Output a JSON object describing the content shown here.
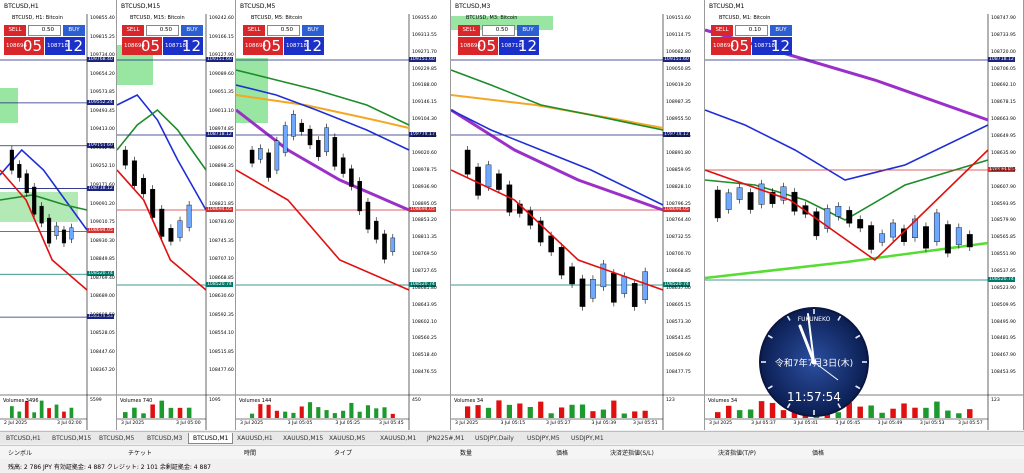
{
  "charts": [
    {
      "title": "BTCUSD,H1",
      "inner_title": "BTCUSD, H1:  Bitcoin",
      "sell_label": "SELL",
      "buy_label": "BUY",
      "lot": "0.50",
      "bid_small": "108694",
      "bid_big": "05",
      "ask_small": "108718",
      "ask_big": "12",
      "y_ticks": [
        "109855.40",
        "109815.25",
        "109734.00",
        "109654.20",
        "109573.85",
        "109493.45",
        "109413.00",
        "109332.55",
        "109252.10",
        "109171.60",
        "109091.20",
        "109010.75",
        "108930.30",
        "108849.85",
        "108769.40",
        "108689.00",
        "108608.50",
        "108528.05",
        "108447.60",
        "108367.20"
      ],
      "price_labels": [
        {
          "text": "109768.40",
          "color": "#1a237e"
        },
        {
          "text": "109552.24",
          "color": "#1a237e"
        },
        {
          "text": "109151.60",
          "color": "#1a237e"
        },
        {
          "text": "108718.12",
          "color": "#1a237e"
        },
        {
          "text": "108694.05",
          "color": "#d32f2f"
        },
        {
          "text": "108520.74",
          "color": "#00796b"
        },
        {
          "text": "108379.53",
          "color": "#1a237e"
        }
      ],
      "x_ticks": [
        "2 Jul 2025",
        "3 Jul 02:00"
      ],
      "volume_label": "Volumes 3496",
      "volume_axis": "5599"
    },
    {
      "title": "BTCUSD,M15",
      "inner_title": "BTCUSD, M15:  Bitcoin",
      "sell_label": "SELL",
      "buy_label": "BUY",
      "lot": "0.50",
      "bid_small": "108694",
      "bid_big": "05",
      "ask_small": "108718",
      "ask_big": "12",
      "y_ticks": [
        "109242.60",
        "109166.15",
        "109127.90",
        "109089.60",
        "109051.35",
        "109013.10",
        "108974.85",
        "108936.60",
        "108898.35",
        "108860.10",
        "108821.85",
        "108783.60",
        "108745.35",
        "108707.10",
        "108668.85",
        "108630.60",
        "108592.35",
        "108554.10",
        "108515.85",
        "108477.60"
      ],
      "price_labels": [
        {
          "text": "109151.60",
          "color": "#1a237e"
        },
        {
          "text": "108718.12",
          "color": "#1a237e"
        },
        {
          "text": "108694.05",
          "color": "#d32f2f"
        },
        {
          "text": "108520.74",
          "color": "#00796b"
        }
      ],
      "x_ticks": [
        "3 Jul 2025",
        "3 Jul 05:00"
      ],
      "volume_label": "Volumes 740",
      "volume_axis": "1095"
    },
    {
      "title": "BTCUSD,M5",
      "inner_title": "BTCUSD, M5:  Bitcoin",
      "sell_label": "SELL",
      "buy_label": "BUY",
      "lot": "0.50",
      "bid_small": "108694",
      "bid_big": "05",
      "ask_small": "108718",
      "ask_big": "12",
      "y_ticks": [
        "109355.40",
        "109313.55",
        "109271.70",
        "109229.85",
        "109188.00",
        "109146.15",
        "109104.30",
        "109062.45",
        "109020.60",
        "108978.75",
        "108936.90",
        "108895.05",
        "108853.20",
        "108811.35",
        "108769.50",
        "108727.65",
        "108685.80",
        "108643.95",
        "108602.10",
        "108560.25",
        "108518.40",
        "108476.55"
      ],
      "price_labels": [
        {
          "text": "109151.60",
          "color": "#1a237e"
        },
        {
          "text": "108718.12",
          "color": "#1a237e"
        },
        {
          "text": "108694.05",
          "color": "#d32f2f"
        },
        {
          "text": "108520.74",
          "color": "#00796b"
        }
      ],
      "x_ticks": [
        "3 Jul 2025",
        "3 Jul 05:05",
        "3 Jul 05:25",
        "3 Jul 05:45"
      ],
      "volume_label": "Volumes 144",
      "volume_axis": "450"
    },
    {
      "title": "BTCUSD,M3",
      "inner_title": "BTCUSD, M3:  Bitcoin",
      "sell_label": "SELL",
      "buy_label": "BUY",
      "lot": "0.50",
      "bid_small": "108694",
      "bid_big": "05",
      "ask_small": "108718",
      "ask_big": "12",
      "y_ticks": [
        "109151.60",
        "109114.75",
        "109082.80",
        "109050.85",
        "109019.20",
        "108987.35",
        "108955.50",
        "108923.65",
        "108891.80",
        "108859.95",
        "108828.10",
        "108796.25",
        "108764.40",
        "108732.55",
        "108700.70",
        "108668.85",
        "108637.00",
        "108605.15",
        "108573.30",
        "108541.45",
        "108509.60",
        "108477.75"
      ],
      "price_labels": [
        {
          "text": "109151.60",
          "color": "#1a237e"
        },
        {
          "text": "108718.12",
          "color": "#1a237e"
        },
        {
          "text": "108694.05",
          "color": "#d32f2f"
        },
        {
          "text": "108520.74",
          "color": "#00796b"
        }
      ],
      "x_ticks": [
        "3 Jul 2025",
        "3 Jul 05:15",
        "3 Jul 05:27",
        "3 Jul 05:39",
        "3 Jul 05:51"
      ],
      "volume_label": "Volumes 34",
      "volume_axis": "123"
    },
    {
      "title": "BTCUSD,M1",
      "inner_title": "BTCUSD, M1:  Bitcoin",
      "sell_label": "SELL",
      "buy_label": "BUY",
      "lot": "0.10",
      "bid_small": "108694",
      "bid_big": "05",
      "ask_small": "108718",
      "ask_big": "12",
      "y_ticks": [
        "108747.90",
        "108733.95",
        "108720.00",
        "108706.05",
        "108692.10",
        "108678.15",
        "108663.90",
        "108649.95",
        "108635.90",
        "108621.95",
        "108607.90",
        "108593.95",
        "108579.90",
        "108565.85",
        "108551.90",
        "108537.95",
        "108523.90",
        "108509.95",
        "108495.90",
        "108481.95",
        "108467.90",
        "108453.95"
      ],
      "price_labels": [
        {
          "text": "108718.12",
          "color": "#1a237e"
        },
        {
          "text": "108694.05",
          "color": "#d32f2f"
        },
        {
          "text": "108520.74",
          "color": "#00796b"
        }
      ],
      "x_ticks": [
        "3 Jul 2025",
        "3 Jul 05:37",
        "3 Jul 05:41",
        "3 Jul 05:45",
        "3 Jul 05:49",
        "3 Jul 05:53",
        "3 Jul 05:57"
      ],
      "volume_label": "Volumes 34",
      "volume_axis": "123"
    }
  ],
  "tabs": [
    "BTCUSD,H1",
    "BTCUSD,M15",
    "BTCUSD,M5",
    "BTCUSD,M3",
    "BTCUSD,M1",
    "XAUUSD,H1",
    "XAUUSD,M15",
    "XAUUSD,M5",
    "XAUUSD,M1",
    "JPN225#,M1",
    "USDJPY,Daily",
    "USDJPY,M5",
    "USDJPY,M1"
  ],
  "active_tab": 4,
  "columns": [
    "シンボル",
    "チケット",
    "時間",
    "タイプ",
    "数量",
    "価格",
    "決済逆指値(S/L)",
    "決済指値(T/P)",
    "価格"
  ],
  "status_text": "残高: 2 786 JPY  有効証拠金: 4 887  クレジット: 2 101  余剰証拠金: 4 887",
  "clock": {
    "brand": "FUKUNEKO",
    "date": "令和7年7月3日(木)",
    "time": "11:57:54"
  }
}
